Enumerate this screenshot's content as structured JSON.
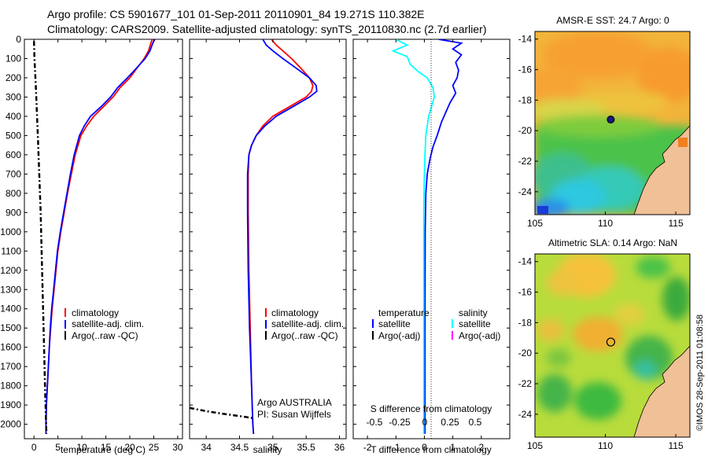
{
  "header": {
    "line1": "Argo profile: CS 5901677_101 01-Sep-2011 20110901_84 19.271S 110.382E",
    "line2": "Climatology: CARS2009. Satellite-adjusted climatology: synTS_20110830.nc (2.7d earlier)"
  },
  "colors": {
    "climatology": "#ff0000",
    "satellite_adj": "#0000ff",
    "argo": "#000000",
    "salinity_sat": "#00ffff",
    "salinity_argo": "#ff00ff"
  },
  "chart_data": [
    {
      "type": "line",
      "panel": "temperature",
      "xlabel": "temperature (deg C)",
      "ylabel": "",
      "xlim": [
        -2,
        31
      ],
      "ylim": [
        2075,
        0
      ],
      "xticks": [
        0,
        5,
        10,
        15,
        20,
        25,
        30
      ],
      "yticks": [
        0,
        100,
        200,
        300,
        400,
        500,
        600,
        700,
        800,
        900,
        1000,
        1100,
        1200,
        1300,
        1400,
        1500,
        1600,
        1700,
        1800,
        1900,
        2000
      ],
      "legend": [
        "climatology",
        "satellite-adj. clim.",
        "Argo(..raw -QC)"
      ],
      "series": [
        {
          "name": "climatology",
          "style": "solid",
          "color": "#ff0000",
          "points": [
            [
              24.7,
              0
            ],
            [
              24.4,
              20
            ],
            [
              23.9,
              60
            ],
            [
              23.0,
              100
            ],
            [
              21.5,
              150
            ],
            [
              20.0,
              200
            ],
            [
              18.0,
              250
            ],
            [
              16.5,
              300
            ],
            [
              14.5,
              350
            ],
            [
              12.5,
              400
            ],
            [
              11.0,
              450
            ],
            [
              9.8,
              500
            ],
            [
              8.6,
              600
            ],
            [
              7.8,
              700
            ],
            [
              7.0,
              800
            ],
            [
              6.3,
              900
            ],
            [
              5.6,
              1000
            ],
            [
              5.0,
              1100
            ],
            [
              4.6,
              1200
            ],
            [
              4.2,
              1300
            ],
            [
              3.8,
              1400
            ],
            [
              3.5,
              1500
            ],
            [
              3.2,
              1600
            ],
            [
              3.0,
              1700
            ],
            [
              2.8,
              1800
            ],
            [
              2.6,
              1900
            ],
            [
              2.5,
              2000
            ],
            [
              2.5,
              2050
            ]
          ]
        },
        {
          "name": "satellite-adj. clim.",
          "style": "solid",
          "color": "#0000ff",
          "points": [
            [
              25.2,
              0
            ],
            [
              24.8,
              20
            ],
            [
              24.2,
              60
            ],
            [
              23.2,
              100
            ],
            [
              21.4,
              150
            ],
            [
              19.5,
              200
            ],
            [
              17.5,
              250
            ],
            [
              16.0,
              300
            ],
            [
              14.0,
              350
            ],
            [
              11.8,
              400
            ],
            [
              10.5,
              450
            ],
            [
              9.5,
              500
            ],
            [
              8.4,
              600
            ],
            [
              7.6,
              700
            ],
            [
              6.9,
              800
            ],
            [
              6.2,
              900
            ],
            [
              5.5,
              1000
            ],
            [
              4.9,
              1100
            ],
            [
              4.5,
              1200
            ],
            [
              4.1,
              1300
            ],
            [
              3.7,
              1400
            ],
            [
              3.4,
              1500
            ],
            [
              3.2,
              1600
            ],
            [
              3.0,
              1700
            ],
            [
              2.8,
              1800
            ],
            [
              2.6,
              1900
            ],
            [
              2.5,
              2000
            ],
            [
              2.5,
              2050
            ]
          ]
        },
        {
          "name": "Argo(..raw -QC)",
          "style": "dashdot",
          "color": "#000000",
          "points": [
            [
              0.0,
              10
            ],
            [
              0.1,
              100
            ],
            [
              0.4,
              250
            ],
            [
              0.8,
              500
            ],
            [
              1.1,
              700
            ],
            [
              1.4,
              900
            ],
            [
              1.7,
              1200
            ],
            [
              2.0,
              1500
            ],
            [
              2.3,
              1800
            ],
            [
              2.6,
              2050
            ]
          ]
        }
      ]
    },
    {
      "type": "line",
      "panel": "salinity",
      "xlabel": "salinity",
      "ylabel": "",
      "xlim": [
        33.75,
        36.1
      ],
      "ylim": [
        2075,
        0
      ],
      "xticks": [
        34,
        34.5,
        35,
        35.5,
        36
      ],
      "legend": [
        "climatology",
        "satellite-adj. clim.",
        "Argo(..raw -QC)"
      ],
      "annotations": [
        "Argo AUSTRALIA",
        "PI: Susan Wijffels"
      ],
      "series": [
        {
          "name": "climatology",
          "style": "solid",
          "color": "#ff0000",
          "points": [
            [
              34.98,
              0
            ],
            [
              35.05,
              30
            ],
            [
              35.15,
              60
            ],
            [
              35.28,
              100
            ],
            [
              35.42,
              150
            ],
            [
              35.55,
              200
            ],
            [
              35.6,
              240
            ],
            [
              35.58,
              270
            ],
            [
              35.5,
              300
            ],
            [
              35.25,
              350
            ],
            [
              35.0,
              400
            ],
            [
              34.85,
              450
            ],
            [
              34.75,
              500
            ],
            [
              34.68,
              550
            ],
            [
              34.64,
              600
            ],
            [
              34.63,
              700
            ],
            [
              34.63,
              900
            ],
            [
              34.64,
              1200
            ],
            [
              34.66,
              1500
            ],
            [
              34.68,
              1800
            ],
            [
              34.7,
              2000
            ],
            [
              34.71,
              2050
            ]
          ]
        },
        {
          "name": "satellite-adj. clim.",
          "style": "solid",
          "color": "#0000ff",
          "points": [
            [
              34.85,
              0
            ],
            [
              34.9,
              30
            ],
            [
              35.0,
              60
            ],
            [
              35.15,
              100
            ],
            [
              35.35,
              150
            ],
            [
              35.55,
              200
            ],
            [
              35.65,
              240
            ],
            [
              35.66,
              270
            ],
            [
              35.55,
              300
            ],
            [
              35.3,
              350
            ],
            [
              35.05,
              400
            ],
            [
              34.88,
              450
            ],
            [
              34.75,
              500
            ],
            [
              34.68,
              550
            ],
            [
              34.64,
              600
            ],
            [
              34.62,
              700
            ],
            [
              34.62,
              900
            ],
            [
              34.63,
              1200
            ],
            [
              34.65,
              1500
            ],
            [
              34.68,
              1800
            ],
            [
              34.7,
              2000
            ],
            [
              34.71,
              2050
            ]
          ]
        },
        {
          "name": "Argo(..raw -QC)",
          "style": "dashdot",
          "color": "#000000",
          "points": [
            [
              33.75,
              1915
            ],
            [
              34.0,
              1932
            ],
            [
              34.3,
              1948
            ],
            [
              34.55,
              1960
            ],
            [
              34.7,
              1968
            ]
          ]
        }
      ]
    },
    {
      "type": "line",
      "panel": "difference",
      "xlabel": "T difference from climatology",
      "top_xlabel": "S difference from climatology",
      "xlim": [
        -2.5,
        3.0
      ],
      "ylim": [
        2075,
        0
      ],
      "xticks": [
        -2,
        -1,
        0,
        1,
        2
      ],
      "top_xticks": [
        "-0.5",
        "-0.25",
        "0",
        "0.25",
        "0.5"
      ],
      "legend_groups": [
        {
          "title": "temperature",
          "entries": [
            "satellite",
            "Argo(-adj)"
          ]
        },
        {
          "title": "salinity",
          "entries": [
            "satellite",
            "Argo(-adj)"
          ]
        }
      ],
      "series": [
        {
          "name": "temperature satellite",
          "style": "solid",
          "color": "#0000ff",
          "points": [
            [
              0.5,
              0
            ],
            [
              1.3,
              20
            ],
            [
              1.0,
              50
            ],
            [
              1.3,
              80
            ],
            [
              1.1,
              120
            ],
            [
              1.2,
              160
            ],
            [
              1.15,
              200
            ],
            [
              1.0,
              240
            ],
            [
              1.1,
              280
            ],
            [
              0.9,
              330
            ],
            [
              0.75,
              380
            ],
            [
              0.6,
              430
            ],
            [
              0.45,
              500
            ],
            [
              0.3,
              560
            ],
            [
              0.2,
              620
            ],
            [
              0.1,
              700
            ],
            [
              0.05,
              800
            ],
            [
              0.03,
              1000
            ],
            [
              0.02,
              1500
            ],
            [
              0.02,
              2050
            ]
          ]
        },
        {
          "name": "salinity satellite",
          "style": "solid",
          "color": "#00ffff",
          "points": [
            [
              -1.0,
              0
            ],
            [
              -0.6,
              30
            ],
            [
              -1.1,
              60
            ],
            [
              -0.6,
              90
            ],
            [
              -0.5,
              130
            ],
            [
              -0.2,
              170
            ],
            [
              0.1,
              200
            ],
            [
              0.3,
              250
            ],
            [
              0.35,
              300
            ],
            [
              0.25,
              350
            ],
            [
              0.15,
              400
            ],
            [
              0.05,
              500
            ],
            [
              0.02,
              600
            ],
            [
              0.0,
              700
            ],
            [
              -0.02,
              900
            ],
            [
              -0.02,
              1500
            ],
            [
              -0.02,
              2050
            ]
          ]
        }
      ]
    },
    {
      "type": "heatmap",
      "panel": "map-sst",
      "title": "AMSR-E SST: 24.7 Argo: 0",
      "xlim": [
        105,
        116
      ],
      "ylim": [
        -25.5,
        -13.5
      ],
      "xticks": [
        105,
        110,
        115
      ],
      "yticks": [
        -14,
        -16,
        -18,
        -20,
        -22,
        -24
      ],
      "marker": {
        "lon": 110.382,
        "lat": -19.271,
        "filled": true
      }
    },
    {
      "type": "heatmap",
      "panel": "map-sla",
      "title": "Altimetric SLA: 0.14 Argo: NaN",
      "xlim": [
        105,
        116
      ],
      "ylim": [
        -25.5,
        -13.5
      ],
      "xticks": [
        105,
        110,
        115
      ],
      "yticks": [
        -14,
        -16,
        -18,
        -20,
        -22,
        -24
      ],
      "marker": {
        "lon": 110.382,
        "lat": -19.271,
        "filled": false
      }
    }
  ],
  "credit": "©IMOS 28-Sep-2011 01:08:58"
}
